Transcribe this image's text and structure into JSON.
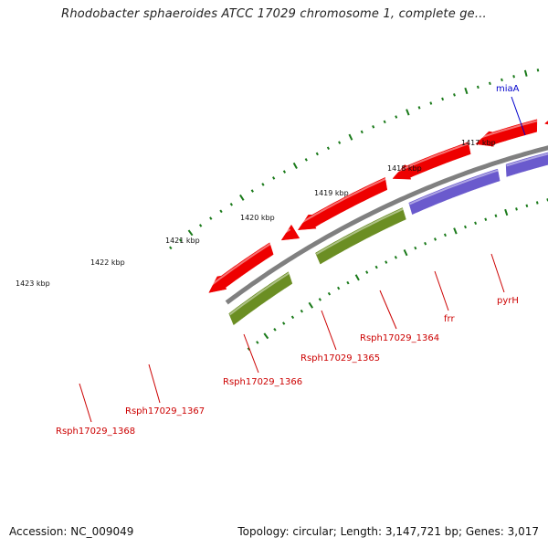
{
  "title": "Rhodobacter sphaeroides ATCC 17029 chromosome 1, complete ge...",
  "footer": {
    "accession": "Accession: NC_009049",
    "summary": "Topology: circular; Length: 3,147,721 bp; Genes: 3,017"
  },
  "colors": {
    "backbone": "#808080",
    "tick": "#1a7a1a",
    "red_gene": "#ee0000",
    "pink_gene": "#f08080",
    "blue_gene": "#0000ee",
    "cyan_gene": "#1ab2ee",
    "purple_gene": "#6a5acd",
    "olive_gene": "#6b8e23",
    "label_red": "#cc0000",
    "label_blue": "#0000cc"
  },
  "kbp_labels": [
    "1417 kbp",
    "1418 kbp",
    "1419 kbp",
    "1420 kbp",
    "1421 kbp",
    "1422 kbp",
    "1423 kbp"
  ],
  "gene_labels": [
    {
      "text": "miaA",
      "color": "blue"
    },
    {
      "text": "pyrH",
      "color": "red"
    },
    {
      "text": "frr",
      "color": "red"
    },
    {
      "text": "Rsph17029_1364",
      "color": "red"
    },
    {
      "text": "Rsph17029_1365",
      "color": "red"
    },
    {
      "text": "Rsph17029_1366",
      "color": "red"
    },
    {
      "text": "Rsph17029_1367",
      "color": "red"
    },
    {
      "text": "Rsph17029_1368",
      "color": "red"
    }
  ]
}
